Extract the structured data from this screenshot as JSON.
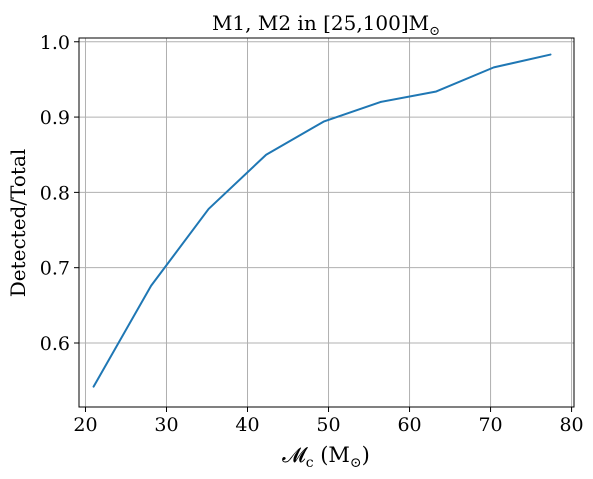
{
  "chart_data": {
    "type": "line",
    "title": "M1, M2 in [25,100]M",
    "title_subscript": "⊙",
    "xlabel": {
      "main": "𝓜",
      "sub": "c",
      "unit_open": " (M",
      "unit_sub": "⊙",
      "unit_close": ")"
    },
    "ylabel": "Detected/Total",
    "xlim": [
      19.2,
      80.3
    ],
    "ylim": [
      0.515,
      1.005
    ],
    "xticks": [
      20,
      30,
      40,
      50,
      60,
      70,
      80
    ],
    "yticks": [
      0.6,
      0.7,
      0.8,
      0.9,
      1.0
    ],
    "xtick_labels": [
      "20",
      "30",
      "40",
      "50",
      "60",
      "70",
      "80"
    ],
    "ytick_labels": [
      "0.6",
      "0.7",
      "0.8",
      "0.9",
      "1.0"
    ],
    "grid": true,
    "series": [
      {
        "color": "#1f77b4",
        "x": [
          21.0,
          28.1,
          35.2,
          42.3,
          49.4,
          56.4,
          63.3,
          70.4,
          77.4
        ],
        "y": [
          0.542,
          0.676,
          0.778,
          0.85,
          0.894,
          0.92,
          0.934,
          0.966,
          0.983
        ]
      }
    ]
  }
}
